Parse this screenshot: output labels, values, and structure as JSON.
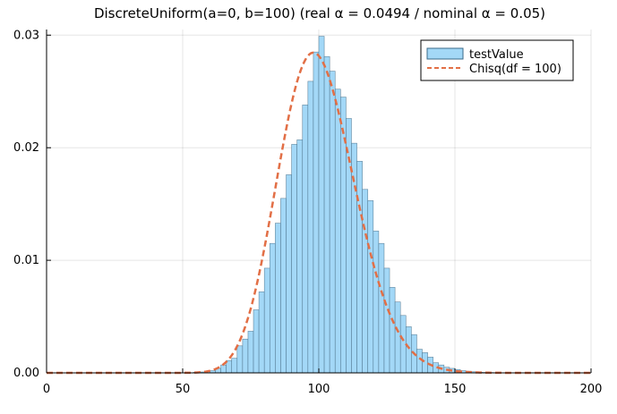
{
  "chart_data": {
    "type": "bar",
    "title": "DiscreteUniform(a=0, b=100)   (real α = 0.0494 / nominal α = 0.05)",
    "xlabel": "",
    "ylabel": "",
    "xlim": [
      0,
      200
    ],
    "ylim": [
      0,
      0.0305
    ],
    "x_ticks": [
      0,
      50,
      100,
      150,
      200
    ],
    "x_tick_labels": [
      "0",
      "50",
      "100",
      "150",
      "200"
    ],
    "y_ticks": [
      0.0,
      0.01,
      0.02,
      0.03
    ],
    "y_tick_labels": [
      "0.00",
      "0.01",
      "0.02",
      "0.03"
    ],
    "grid": true,
    "legend_position": "top-right",
    "histogram": {
      "name": "testValue",
      "bin_width": 2,
      "bin_starts": [
        54,
        56,
        58,
        60,
        62,
        64,
        66,
        68,
        70,
        72,
        74,
        76,
        78,
        80,
        82,
        84,
        86,
        88,
        90,
        92,
        94,
        96,
        98,
        100,
        102,
        104,
        106,
        108,
        110,
        112,
        114,
        116,
        118,
        120,
        122,
        124,
        126,
        128,
        130,
        132,
        134,
        136,
        138,
        140,
        142,
        144,
        146,
        148,
        150,
        152,
        154,
        156,
        158,
        160,
        162,
        164,
        166,
        168
      ],
      "values": [
        5e-05,
        8e-05,
        0.00012,
        0.0002,
        0.0004,
        0.0007,
        0.0011,
        0.0013,
        0.0024,
        0.003,
        0.0037,
        0.0056,
        0.0072,
        0.0093,
        0.0115,
        0.0133,
        0.0155,
        0.0176,
        0.0203,
        0.0207,
        0.0238,
        0.0259,
        0.0285,
        0.0299,
        0.0281,
        0.0268,
        0.0252,
        0.0245,
        0.0226,
        0.0204,
        0.0188,
        0.0163,
        0.0153,
        0.0126,
        0.0115,
        0.0093,
        0.0076,
        0.0063,
        0.0051,
        0.0041,
        0.0034,
        0.0021,
        0.0018,
        0.0014,
        0.0009,
        0.0007,
        0.0005,
        0.0004,
        0.0003,
        0.0002,
        0.00015,
        0.0001,
        6e-05,
        4e-05,
        3e-05,
        2e-05,
        1e-05,
        1e-05
      ]
    },
    "series": [
      {
        "name": "testValue",
        "kind": "histogram",
        "color": "#a3d8f7"
      },
      {
        "name": "Chisq(df = 100)",
        "kind": "line",
        "style": "dashed",
        "color": "#e26f46",
        "distribution": "chi-squared",
        "df": 100
      }
    ]
  }
}
